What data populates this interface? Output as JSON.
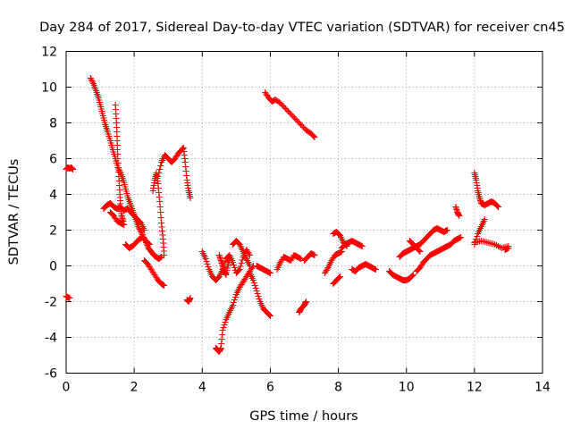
{
  "chart_data": {
    "type": "scatter",
    "title": "Day 284 of 2017, Sidereal Day-to-day VTEC variation (SDTVAR) for receiver cn45",
    "xlabel": "GPS time / hours",
    "ylabel": "SDTVAR / TECUs",
    "xlim": [
      0,
      14
    ],
    "ylim": [
      -6,
      12
    ],
    "xticks": [
      "0",
      "2",
      "4",
      "6",
      "8",
      "10",
      "12",
      "14"
    ],
    "yticks": [
      "-6",
      "-4",
      "-2",
      "0",
      "2",
      "4",
      "6",
      "8",
      "10",
      "12"
    ],
    "grid": true,
    "marker": "+",
    "color": "#ff0000",
    "series": [
      {
        "values": [
          [
            0.0,
            5.4
          ],
          [
            0.05,
            5.5
          ],
          [
            0.1,
            5.45
          ],
          [
            0.15,
            5.5
          ],
          [
            0.2,
            5.4
          ]
        ]
      },
      {
        "values": [
          [
            0.0,
            -1.7
          ],
          [
            0.05,
            -1.75
          ],
          [
            0.1,
            -1.8
          ]
        ]
      },
      {
        "values": [
          [
            0.72,
            10.5
          ],
          [
            0.8,
            10.2
          ],
          [
            0.88,
            9.8
          ],
          [
            0.95,
            9.4
          ],
          [
            1.02,
            8.9
          ],
          [
            1.08,
            8.4
          ],
          [
            1.15,
            7.9
          ],
          [
            1.22,
            7.5
          ],
          [
            1.3,
            7.0
          ],
          [
            1.37,
            6.5
          ],
          [
            1.45,
            6.0
          ],
          [
            1.52,
            5.5
          ],
          [
            1.6,
            5.2
          ],
          [
            1.68,
            4.8
          ],
          [
            1.75,
            4.3
          ],
          [
            1.82,
            3.8
          ],
          [
            1.9,
            3.4
          ],
          [
            1.97,
            3.0
          ],
          [
            2.05,
            2.6
          ],
          [
            2.12,
            2.2
          ],
          [
            2.2,
            1.9
          ],
          [
            2.28,
            1.6
          ],
          [
            2.35,
            1.3
          ],
          [
            2.42,
            1.0
          ],
          [
            2.5,
            0.8
          ],
          [
            2.58,
            0.6
          ],
          [
            2.65,
            0.5
          ],
          [
            2.72,
            0.4
          ],
          [
            2.8,
            0.5
          ]
        ]
      },
      {
        "values": [
          [
            1.1,
            3.2
          ],
          [
            1.2,
            3.4
          ],
          [
            1.3,
            3.5
          ],
          [
            1.4,
            3.3
          ],
          [
            1.5,
            3.2
          ],
          [
            1.6,
            3.3
          ],
          [
            1.7,
            3.1
          ],
          [
            1.8,
            3.2
          ],
          [
            1.9,
            3.0
          ],
          [
            2.0,
            2.8
          ],
          [
            2.1,
            2.6
          ],
          [
            2.2,
            2.4
          ],
          [
            2.3,
            2.0
          ]
        ]
      },
      {
        "values": [
          [
            1.45,
            9.0
          ],
          [
            1.48,
            8.0
          ],
          [
            1.5,
            7.0
          ],
          [
            1.52,
            6.0
          ],
          [
            1.55,
            5.0
          ],
          [
            1.58,
            4.0
          ],
          [
            1.6,
            3.3
          ],
          [
            1.63,
            2.8
          ],
          [
            1.68,
            2.5
          ]
        ]
      },
      {
        "values": [
          [
            1.3,
            3.0
          ],
          [
            1.4,
            2.8
          ],
          [
            1.5,
            2.5
          ],
          [
            1.6,
            2.4
          ],
          [
            1.7,
            2.3
          ]
        ]
      },
      {
        "values": [
          [
            1.75,
            1.2
          ],
          [
            1.85,
            1.0
          ],
          [
            1.95,
            1.1
          ],
          [
            2.05,
            1.3
          ],
          [
            2.15,
            1.5
          ],
          [
            2.25,
            1.6
          ],
          [
            2.35,
            1.4
          ],
          [
            2.45,
            1.2
          ]
        ]
      },
      {
        "values": [
          [
            2.3,
            0.3
          ],
          [
            2.4,
            0.1
          ],
          [
            2.5,
            -0.2
          ],
          [
            2.6,
            -0.5
          ],
          [
            2.7,
            -0.8
          ],
          [
            2.8,
            -1.0
          ],
          [
            2.88,
            -1.1
          ]
        ]
      },
      {
        "values": [
          [
            2.55,
            4.2
          ],
          [
            2.6,
            4.8
          ],
          [
            2.65,
            5.2
          ],
          [
            2.7,
            4.6
          ],
          [
            2.75,
            3.6
          ],
          [
            2.8,
            2.4
          ],
          [
            2.85,
            1.5
          ],
          [
            2.88,
            0.6
          ]
        ]
      },
      {
        "values": [
          [
            2.7,
            5.0
          ],
          [
            2.8,
            5.8
          ],
          [
            2.9,
            6.2
          ],
          [
            3.0,
            6.0
          ],
          [
            3.1,
            5.8
          ],
          [
            3.2,
            6.0
          ],
          [
            3.3,
            6.3
          ],
          [
            3.4,
            6.5
          ],
          [
            3.45,
            6.6
          ],
          [
            3.5,
            5.8
          ],
          [
            3.55,
            4.8
          ],
          [
            3.6,
            4.2
          ],
          [
            3.65,
            3.8
          ]
        ]
      },
      {
        "values": [
          [
            3.55,
            -1.9
          ],
          [
            3.6,
            -2.0
          ],
          [
            3.65,
            -1.8
          ]
        ]
      },
      {
        "values": [
          [
            4.0,
            0.8
          ],
          [
            4.1,
            0.4
          ],
          [
            4.2,
            -0.2
          ],
          [
            4.3,
            -0.6
          ],
          [
            4.4,
            -0.8
          ],
          [
            4.5,
            -0.6
          ],
          [
            4.6,
            -0.2
          ],
          [
            4.7,
            0.4
          ],
          [
            4.8,
            0.6
          ],
          [
            4.9,
            0.2
          ],
          [
            5.0,
            -0.4
          ],
          [
            5.1,
            -0.2
          ],
          [
            5.2,
            0.5
          ],
          [
            5.3,
            0.9
          ],
          [
            5.4,
            0.6
          ]
        ]
      },
      {
        "values": [
          [
            4.4,
            -4.6
          ],
          [
            4.45,
            -4.7
          ],
          [
            4.5,
            -4.8
          ],
          [
            4.55,
            -4.6
          ],
          [
            4.6,
            -3.6
          ],
          [
            4.7,
            -3.0
          ],
          [
            4.8,
            -2.6
          ],
          [
            4.9,
            -2.2
          ],
          [
            5.0,
            -1.6
          ],
          [
            5.1,
            -1.2
          ],
          [
            5.2,
            -0.9
          ],
          [
            5.3,
            -0.6
          ],
          [
            5.4,
            -0.3
          ],
          [
            5.5,
            0.0
          ]
        ]
      },
      {
        "values": [
          [
            4.5,
            0.6
          ],
          [
            4.55,
            0.3
          ],
          [
            4.6,
            0.0
          ],
          [
            4.65,
            -0.3
          ],
          [
            4.7,
            -0.5
          ],
          [
            4.75,
            0.0
          ],
          [
            4.8,
            0.4
          ]
        ]
      },
      {
        "values": [
          [
            4.9,
            1.2
          ],
          [
            5.0,
            1.4
          ],
          [
            5.1,
            1.2
          ],
          [
            5.2,
            0.8
          ],
          [
            5.3,
            0.4
          ],
          [
            5.4,
            0.0
          ]
        ]
      },
      {
        "values": [
          [
            5.4,
            -0.4
          ],
          [
            5.5,
            -0.8
          ],
          [
            5.6,
            -1.4
          ],
          [
            5.7,
            -2.0
          ],
          [
            5.8,
            -2.4
          ],
          [
            5.9,
            -2.6
          ],
          [
            6.0,
            -2.8
          ]
        ]
      },
      {
        "values": [
          [
            5.6,
            0.0
          ],
          [
            5.7,
            -0.1
          ],
          [
            5.8,
            -0.2
          ],
          [
            5.9,
            -0.3
          ],
          [
            6.0,
            -0.4
          ]
        ]
      },
      {
        "values": [
          [
            5.85,
            9.7
          ],
          [
            5.95,
            9.4
          ],
          [
            6.05,
            9.2
          ],
          [
            6.15,
            9.3
          ],
          [
            6.3,
            9.1
          ],
          [
            6.45,
            8.8
          ],
          [
            6.6,
            8.5
          ],
          [
            6.75,
            8.2
          ],
          [
            6.9,
            7.9
          ],
          [
            7.05,
            7.6
          ],
          [
            7.2,
            7.4
          ],
          [
            7.3,
            7.2
          ]
        ]
      },
      {
        "values": [
          [
            6.2,
            -0.2
          ],
          [
            6.3,
            0.2
          ],
          [
            6.4,
            0.5
          ],
          [
            6.5,
            0.4
          ],
          [
            6.6,
            0.3
          ],
          [
            6.7,
            0.6
          ],
          [
            6.8,
            0.5
          ],
          [
            6.9,
            0.4
          ]
        ]
      },
      {
        "values": [
          [
            6.85,
            -2.6
          ],
          [
            6.9,
            -2.4
          ],
          [
            7.0,
            -2.2
          ],
          [
            7.05,
            -2.0
          ]
        ]
      },
      {
        "values": [
          [
            7.0,
            0.3
          ],
          [
            7.1,
            0.5
          ],
          [
            7.2,
            0.7
          ],
          [
            7.3,
            0.6
          ]
        ]
      },
      {
        "values": [
          [
            7.6,
            -0.4
          ],
          [
            7.7,
            -0.1
          ],
          [
            7.8,
            0.3
          ],
          [
            7.9,
            0.6
          ],
          [
            8.0,
            0.7
          ],
          [
            8.1,
            0.8
          ]
        ]
      },
      {
        "values": [
          [
            7.85,
            1.8
          ],
          [
            7.95,
            1.9
          ],
          [
            8.05,
            1.7
          ],
          [
            8.15,
            1.3
          ],
          [
            8.25,
            1.1
          ]
        ]
      },
      {
        "values": [
          [
            7.85,
            -1.0
          ],
          [
            7.95,
            -0.8
          ],
          [
            8.05,
            -0.6
          ]
        ]
      },
      {
        "values": [
          [
            8.1,
            1.0
          ],
          [
            8.2,
            1.2
          ],
          [
            8.3,
            1.3
          ],
          [
            8.4,
            1.4
          ],
          [
            8.5,
            1.3
          ],
          [
            8.6,
            1.2
          ],
          [
            8.7,
            1.1
          ]
        ]
      },
      {
        "values": [
          [
            8.4,
            -0.2
          ],
          [
            8.5,
            -0.3
          ],
          [
            8.6,
            -0.1
          ],
          [
            8.7,
            0.0
          ],
          [
            8.8,
            0.1
          ],
          [
            8.9,
            0.0
          ],
          [
            9.0,
            -0.1
          ],
          [
            9.1,
            -0.2
          ]
        ]
      },
      {
        "values": [
          [
            9.5,
            -0.3
          ],
          [
            9.6,
            -0.5
          ],
          [
            9.7,
            -0.6
          ],
          [
            9.8,
            -0.7
          ],
          [
            9.9,
            -0.8
          ],
          [
            10.0,
            -0.8
          ],
          [
            10.1,
            -0.7
          ],
          [
            10.2,
            -0.5
          ]
        ]
      },
      {
        "values": [
          [
            9.8,
            0.5
          ],
          [
            9.9,
            0.7
          ],
          [
            10.0,
            0.8
          ],
          [
            10.1,
            0.9
          ],
          [
            10.2,
            1.0
          ],
          [
            10.3,
            1.1
          ],
          [
            10.4,
            1.2
          ],
          [
            10.5,
            1.4
          ],
          [
            10.6,
            1.6
          ],
          [
            10.7,
            1.8
          ],
          [
            10.8,
            2.0
          ],
          [
            10.9,
            2.1
          ],
          [
            11.0,
            2.0
          ],
          [
            11.1,
            1.9
          ],
          [
            11.2,
            2.0
          ]
        ]
      },
      {
        "values": [
          [
            10.1,
            1.4
          ],
          [
            10.2,
            1.2
          ],
          [
            10.3,
            1.0
          ],
          [
            10.4,
            0.8
          ]
        ]
      },
      {
        "values": [
          [
            10.3,
            -0.3
          ],
          [
            10.4,
            -0.1
          ],
          [
            10.5,
            0.2
          ],
          [
            10.6,
            0.4
          ],
          [
            10.7,
            0.6
          ],
          [
            10.8,
            0.7
          ],
          [
            10.9,
            0.8
          ],
          [
            11.0,
            0.9
          ],
          [
            11.1,
            1.0
          ],
          [
            11.2,
            1.1
          ],
          [
            11.3,
            1.2
          ],
          [
            11.4,
            1.4
          ],
          [
            11.5,
            1.5
          ],
          [
            11.6,
            1.6
          ]
        ]
      },
      {
        "values": [
          [
            11.45,
            3.3
          ],
          [
            11.5,
            3.0
          ],
          [
            11.55,
            2.8
          ]
        ]
      },
      {
        "values": [
          [
            12.0,
            5.2
          ],
          [
            12.05,
            4.8
          ],
          [
            12.1,
            4.2
          ],
          [
            12.15,
            3.8
          ],
          [
            12.2,
            3.5
          ],
          [
            12.3,
            3.4
          ],
          [
            12.4,
            3.5
          ],
          [
            12.5,
            3.6
          ],
          [
            12.6,
            3.5
          ],
          [
            12.7,
            3.3
          ]
        ]
      },
      {
        "values": [
          [
            12.0,
            1.2
          ],
          [
            12.1,
            1.8
          ],
          [
            12.2,
            2.2
          ],
          [
            12.3,
            2.6
          ]
        ]
      },
      {
        "values": [
          [
            12.0,
            1.3
          ],
          [
            12.2,
            1.4
          ],
          [
            12.4,
            1.3
          ],
          [
            12.6,
            1.2
          ],
          [
            12.8,
            1.0
          ],
          [
            13.0,
            1.1
          ]
        ]
      },
      {
        "values": [
          [
            12.9,
            0.9
          ],
          [
            13.0,
            1.0
          ]
        ]
      }
    ]
  }
}
